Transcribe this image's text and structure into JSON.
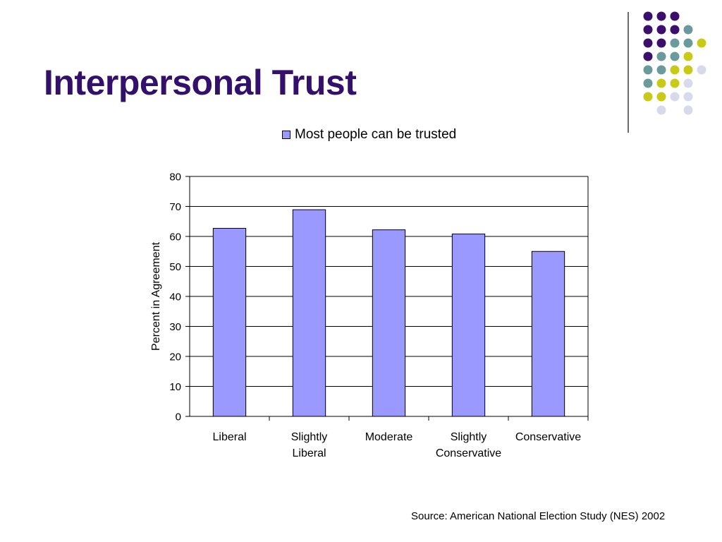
{
  "slide": {
    "title": "Interpersonal Trust",
    "source": "Source: American National Election Study (NES) 2002"
  },
  "decoration": {
    "dot_colors": {
      "purple": "#3b0f6b",
      "teal": "#6b9a9c",
      "lime": "#c9c918",
      "lavender": "#d9d9ec"
    },
    "dot_grid": [
      [
        "purple",
        "purple",
        "purple",
        "",
        ""
      ],
      [
        "purple",
        "purple",
        "purple",
        "teal",
        ""
      ],
      [
        "purple",
        "purple",
        "teal",
        "teal",
        "lime"
      ],
      [
        "purple",
        "teal",
        "teal",
        "lime",
        ""
      ],
      [
        "teal",
        "teal",
        "lime",
        "lime",
        "lavender"
      ],
      [
        "teal",
        "lime",
        "lime",
        "lavender",
        ""
      ],
      [
        "lime",
        "lime",
        "lavender",
        "lavender",
        ""
      ],
      [
        "",
        "lavender",
        "",
        "lavender",
        ""
      ]
    ]
  },
  "chart_data": {
    "type": "bar",
    "categories": [
      [
        "Liberal"
      ],
      [
        "Slightly",
        "Liberal"
      ],
      [
        "Moderate"
      ],
      [
        "Slightly",
        "Conservative"
      ],
      [
        "Conservative"
      ]
    ],
    "series": [
      {
        "name": "Most people can be trusted",
        "color": "#9999ff",
        "values": [
          62.7,
          68.9,
          62.2,
          60.8,
          55.0
        ]
      }
    ],
    "ylabel": "Percent in Agreement",
    "xlabel": "",
    "ylim": [
      0,
      80
    ],
    "yticks": [
      0,
      10,
      20,
      30,
      40,
      50,
      60,
      70,
      80
    ],
    "grid": true,
    "legend_position": "top"
  }
}
